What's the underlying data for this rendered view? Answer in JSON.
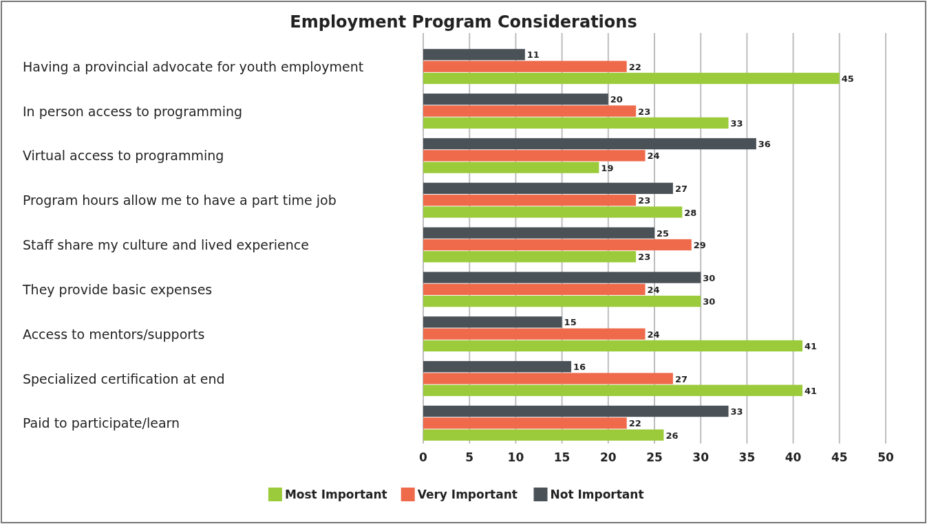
{
  "chart_data": {
    "type": "bar",
    "orientation": "horizontal",
    "title": "Employment Program Considerations",
    "categories": [
      "Having a provincial advocate for youth employment",
      "In person access to programming",
      "Virtual access to programming",
      "Program hours allow me to have a part time job",
      "Staff share my culture and lived experience",
      "They provide basic expenses",
      "Access to mentors/supports",
      "Specialized certification at end",
      "Paid to participate/learn"
    ],
    "series": [
      {
        "name": "Most Important",
        "color": "#9bcb3b",
        "values": [
          45,
          33,
          19,
          28,
          23,
          30,
          41,
          41,
          26
        ]
      },
      {
        "name": "Very Important",
        "color": "#ef6a4b",
        "values": [
          22,
          23,
          24,
          23,
          29,
          24,
          24,
          27,
          22
        ]
      },
      {
        "name": "Not Important",
        "color": "#4a5157",
        "values": [
          11,
          20,
          36,
          27,
          25,
          30,
          15,
          16,
          33
        ]
      }
    ],
    "xlim": [
      0,
      50
    ],
    "xticks": [
      0,
      5,
      10,
      15,
      20,
      25,
      30,
      35,
      40,
      45,
      50
    ],
    "grid": "x",
    "legend": "bottom",
    "data_labels": true
  }
}
